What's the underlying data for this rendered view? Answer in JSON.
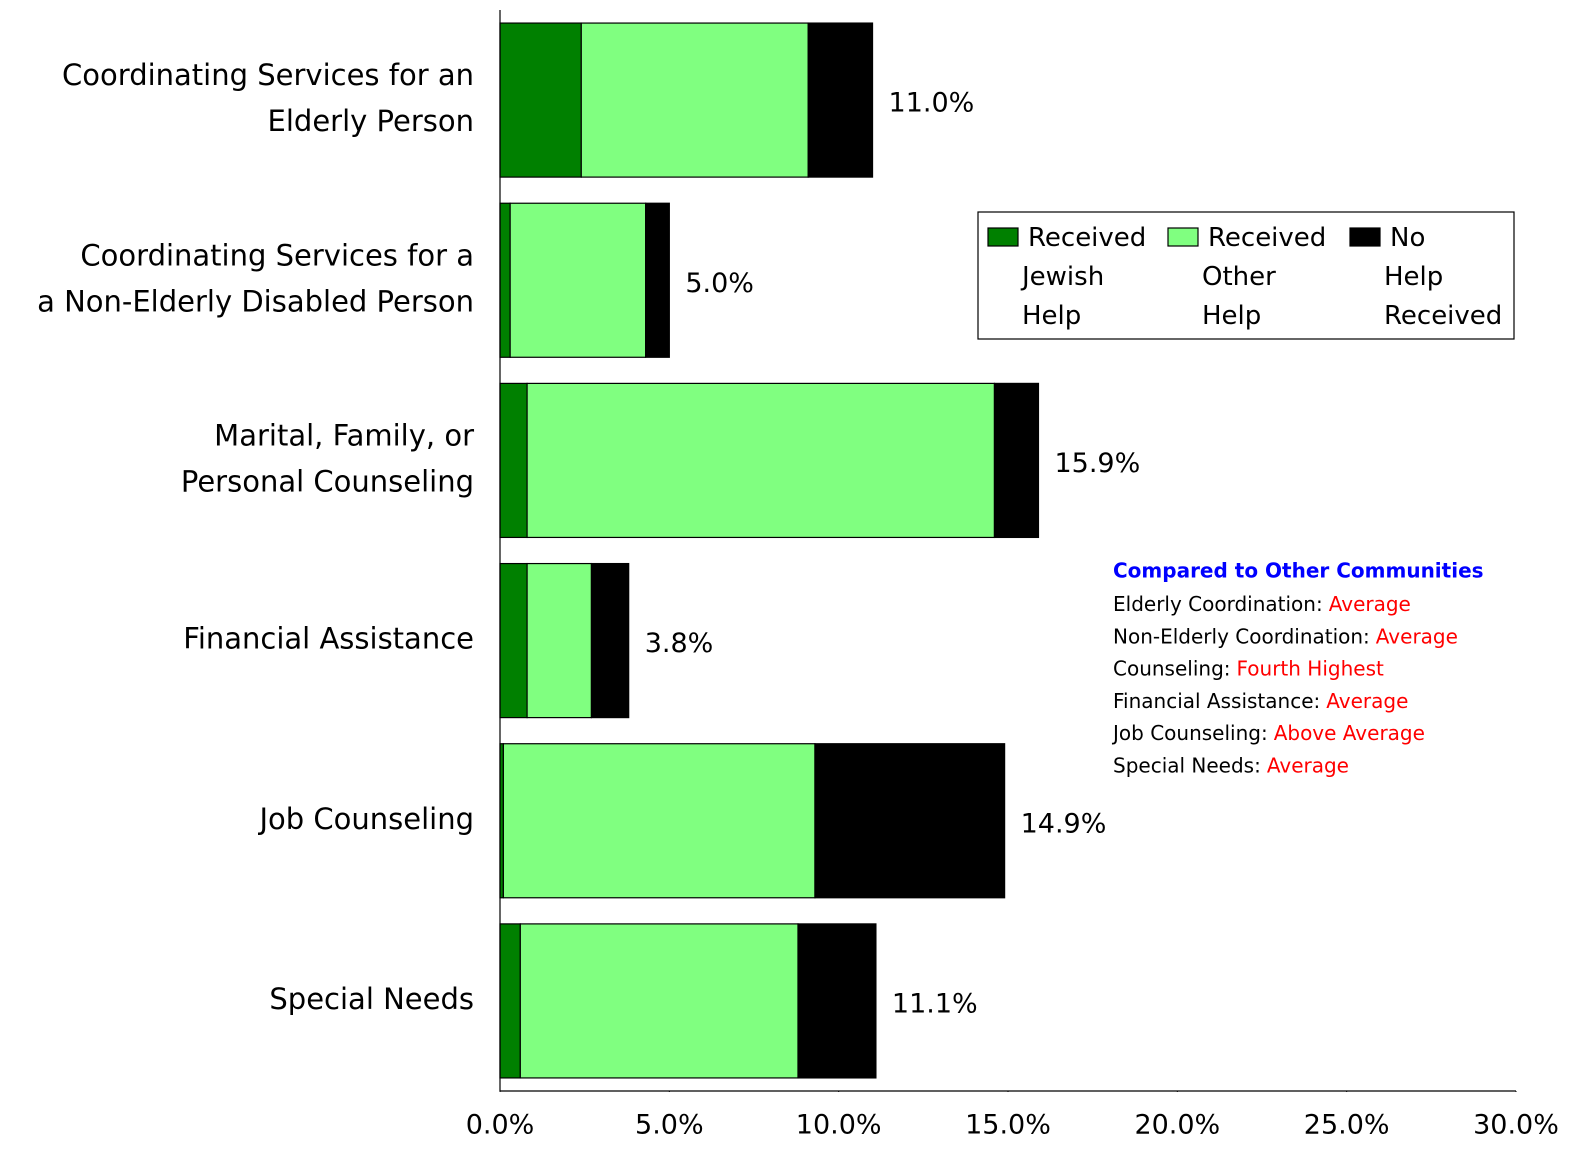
{
  "chart_data": {
    "type": "stacked_barh",
    "categories": [
      [
        "Coordinating Services for an",
        "Elderly Person"
      ],
      [
        "Coordinating Services for a",
        "a Non-Elderly Disabled Person"
      ],
      [
        "Marital, Family, or",
        "Personal Counseling"
      ],
      [
        "Financial Assistance"
      ],
      [
        "Job Counseling"
      ],
      [
        "Special Needs"
      ]
    ],
    "series": [
      {
        "name": "Received Jewish Help",
        "color": "#008000",
        "values": [
          2.4,
          0.3,
          0.8,
          0.8,
          0.1,
          0.6
        ]
      },
      {
        "name": "Received Other Help",
        "color": "#80ff80",
        "values": [
          6.7,
          4.0,
          13.8,
          1.9,
          9.2,
          8.2
        ]
      },
      {
        "name": "No Help Received",
        "color": "#000000",
        "values": [
          1.9,
          0.7,
          1.3,
          1.1,
          5.6,
          2.3
        ]
      }
    ],
    "totals": [
      11.0,
      5.0,
      15.9,
      3.8,
      14.9,
      11.1
    ],
    "total_labels": [
      "11.0%",
      "5.0%",
      "15.9%",
      "3.8%",
      "14.9%",
      "11.1%"
    ],
    "xlim": [
      0,
      30
    ],
    "xticks": [
      {
        "value": 0,
        "label": "0.0%"
      },
      {
        "value": 5,
        "label": "5.0%"
      },
      {
        "value": 10,
        "label": "10.0%"
      },
      {
        "value": 15,
        "label": "15.0%"
      },
      {
        "value": 20,
        "label": "20.0%"
      },
      {
        "value": 25,
        "label": "25.0%"
      },
      {
        "value": 30,
        "label": "30.0%"
      }
    ],
    "legend": "upper right",
    "annotation": {
      "title": "Compared to Other Communities",
      "items": [
        {
          "label": "Elderly Coordination:",
          "rating": "Average"
        },
        {
          "label": "Non-Elderly Coordination:",
          "rating": "Average"
        },
        {
          "label": "Counseling:",
          "rating": "Fourth Highest"
        },
        {
          "label": "Financial Assistance:",
          "rating": "Average"
        },
        {
          "label": "Job Counseling:",
          "rating": "Above Average"
        },
        {
          "label": "Special Needs:",
          "rating": "Average"
        }
      ]
    }
  }
}
